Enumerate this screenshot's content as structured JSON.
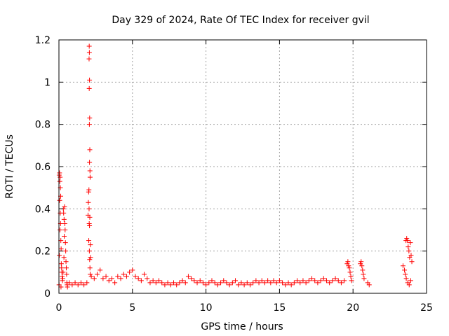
{
  "chart_data": {
    "type": "scatter",
    "title": "Day 329 of 2024, Rate Of TEC Index for receiver gvil",
    "xlabel": "GPS time / hours",
    "ylabel": "ROTI / TECUs",
    "xlim": [
      0,
      25
    ],
    "ylim": [
      0,
      1.2
    ],
    "x_ticks": [
      0,
      5,
      10,
      15,
      20,
      25
    ],
    "x_tick_labels": [
      "0",
      "5",
      "10",
      "15",
      "20",
      "25"
    ],
    "y_ticks": [
      0,
      0.2,
      0.4,
      0.6,
      0.8,
      1.0,
      1.2
    ],
    "y_tick_labels": [
      "0",
      "0.2",
      "0.4",
      "0.6",
      "0.8",
      "1",
      "1.2"
    ],
    "grid": true,
    "grid_style": "dotted",
    "marker": "+",
    "marker_color": "#ff0000",
    "series": [
      {
        "values_note": "",
        "points": [
          [
            0.02,
            0.56
          ],
          [
            0.04,
            0.57
          ],
          [
            0.06,
            0.53
          ],
          [
            0.08,
            0.55
          ],
          [
            0.1,
            0.5
          ],
          [
            0.12,
            0.46
          ],
          [
            0.05,
            0.44
          ],
          [
            0.09,
            0.38
          ],
          [
            0.11,
            0.33
          ],
          [
            0.07,
            0.3
          ],
          [
            0.13,
            0.25
          ],
          [
            0.15,
            0.21
          ],
          [
            0.03,
            0.18
          ],
          [
            0.16,
            0.14
          ],
          [
            0.18,
            0.12
          ],
          [
            0.2,
            0.1
          ],
          [
            0.22,
            0.08
          ],
          [
            0.24,
            0.06
          ],
          [
            0.01,
            0.04
          ],
          [
            0.14,
            0.03
          ],
          [
            0.3,
            0.4
          ],
          [
            0.32,
            0.38
          ],
          [
            0.35,
            0.35
          ],
          [
            0.38,
            0.41
          ],
          [
            0.4,
            0.33
          ],
          [
            0.42,
            0.3
          ],
          [
            0.36,
            0.27
          ],
          [
            0.44,
            0.24
          ],
          [
            0.46,
            0.2
          ],
          [
            0.34,
            0.17
          ],
          [
            0.48,
            0.15
          ],
          [
            0.5,
            0.12
          ],
          [
            0.28,
            0.1
          ],
          [
            0.52,
            0.09
          ],
          [
            0.26,
            0.07
          ],
          [
            0.54,
            0.05
          ],
          [
            0.56,
            0.04
          ],
          [
            0.58,
            0.03
          ],
          [
            0.7,
            0.05
          ],
          [
            0.9,
            0.04
          ],
          [
            1.1,
            0.05
          ],
          [
            1.3,
            0.04
          ],
          [
            1.5,
            0.05
          ],
          [
            1.7,
            0.04
          ],
          [
            1.9,
            0.05
          ],
          [
            1.98,
            0.37
          ],
          [
            2.0,
            0.43
          ],
          [
            2.02,
            0.48
          ],
          [
            2.04,
            0.49
          ],
          [
            2.05,
            0.4
          ],
          [
            2.06,
            0.33
          ],
          [
            2.08,
            0.32
          ],
          [
            2.1,
            0.36
          ],
          [
            2.03,
            0.25
          ],
          [
            2.07,
            0.2
          ],
          [
            2.09,
            0.16
          ],
          [
            2.11,
            0.12
          ],
          [
            2.13,
            0.09
          ],
          [
            2.06,
            1.17
          ],
          [
            2.07,
            1.14
          ],
          [
            2.05,
            1.11
          ],
          [
            2.08,
            1.01
          ],
          [
            2.06,
            0.97
          ],
          [
            2.09,
            0.83
          ],
          [
            2.07,
            0.8
          ],
          [
            2.1,
            0.68
          ],
          [
            2.08,
            0.62
          ],
          [
            2.11,
            0.58
          ],
          [
            2.12,
            0.55
          ],
          [
            2.14,
            0.23
          ],
          [
            2.15,
            0.17
          ],
          [
            2.2,
            0.08
          ],
          [
            2.4,
            0.07
          ],
          [
            2.6,
            0.09
          ],
          [
            2.8,
            0.11
          ],
          [
            3.0,
            0.07
          ],
          [
            3.2,
            0.08
          ],
          [
            3.4,
            0.06
          ],
          [
            3.6,
            0.07
          ],
          [
            3.8,
            0.05
          ],
          [
            4.0,
            0.08
          ],
          [
            4.2,
            0.07
          ],
          [
            4.4,
            0.09
          ],
          [
            4.6,
            0.08
          ],
          [
            4.8,
            0.1
          ],
          [
            5.0,
            0.11
          ],
          [
            5.2,
            0.08
          ],
          [
            5.4,
            0.07
          ],
          [
            5.6,
            0.06
          ],
          [
            5.8,
            0.09
          ],
          [
            6.0,
            0.07
          ],
          [
            6.2,
            0.05
          ],
          [
            6.4,
            0.06
          ],
          [
            6.6,
            0.05
          ],
          [
            6.8,
            0.06
          ],
          [
            7.0,
            0.05
          ],
          [
            7.2,
            0.04
          ],
          [
            7.4,
            0.05
          ],
          [
            7.6,
            0.04
          ],
          [
            7.8,
            0.05
          ],
          [
            8.0,
            0.04
          ],
          [
            8.2,
            0.05
          ],
          [
            8.4,
            0.06
          ],
          [
            8.6,
            0.05
          ],
          [
            8.8,
            0.08
          ],
          [
            9.0,
            0.07
          ],
          [
            9.2,
            0.06
          ],
          [
            9.4,
            0.05
          ],
          [
            9.6,
            0.06
          ],
          [
            9.8,
            0.05
          ],
          [
            10.0,
            0.04
          ],
          [
            10.2,
            0.05
          ],
          [
            10.4,
            0.06
          ],
          [
            10.6,
            0.05
          ],
          [
            10.8,
            0.04
          ],
          [
            11.0,
            0.05
          ],
          [
            11.2,
            0.06
          ],
          [
            11.4,
            0.05
          ],
          [
            11.6,
            0.04
          ],
          [
            11.8,
            0.05
          ],
          [
            12.0,
            0.06
          ],
          [
            12.2,
            0.04
          ],
          [
            12.4,
            0.05
          ],
          [
            12.6,
            0.04
          ],
          [
            12.8,
            0.05
          ],
          [
            13.0,
            0.04
          ],
          [
            13.2,
            0.05
          ],
          [
            13.4,
            0.06
          ],
          [
            13.6,
            0.05
          ],
          [
            13.8,
            0.06
          ],
          [
            14.0,
            0.05
          ],
          [
            14.2,
            0.06
          ],
          [
            14.4,
            0.05
          ],
          [
            14.6,
            0.06
          ],
          [
            14.8,
            0.05
          ],
          [
            15.0,
            0.06
          ],
          [
            15.2,
            0.05
          ],
          [
            15.4,
            0.04
          ],
          [
            15.6,
            0.05
          ],
          [
            15.8,
            0.04
          ],
          [
            16.0,
            0.05
          ],
          [
            16.2,
            0.06
          ],
          [
            16.4,
            0.05
          ],
          [
            16.6,
            0.06
          ],
          [
            16.8,
            0.05
          ],
          [
            17.0,
            0.06
          ],
          [
            17.2,
            0.07
          ],
          [
            17.4,
            0.06
          ],
          [
            17.6,
            0.05
          ],
          [
            17.8,
            0.06
          ],
          [
            18.0,
            0.07
          ],
          [
            18.2,
            0.06
          ],
          [
            18.4,
            0.05
          ],
          [
            18.6,
            0.06
          ],
          [
            18.8,
            0.07
          ],
          [
            19.0,
            0.06
          ],
          [
            19.2,
            0.05
          ],
          [
            19.4,
            0.06
          ],
          [
            19.6,
            0.14
          ],
          [
            19.65,
            0.15
          ],
          [
            19.7,
            0.13
          ],
          [
            19.75,
            0.12
          ],
          [
            19.8,
            0.1
          ],
          [
            19.85,
            0.08
          ],
          [
            19.9,
            0.06
          ],
          [
            20.5,
            0.14
          ],
          [
            20.55,
            0.15
          ],
          [
            20.6,
            0.13
          ],
          [
            20.65,
            0.11
          ],
          [
            20.7,
            0.09
          ],
          [
            20.75,
            0.07
          ],
          [
            21.0,
            0.05
          ],
          [
            21.1,
            0.04
          ],
          [
            23.4,
            0.13
          ],
          [
            23.5,
            0.11
          ],
          [
            23.55,
            0.09
          ],
          [
            23.6,
            0.25
          ],
          [
            23.65,
            0.26
          ],
          [
            23.7,
            0.25
          ],
          [
            23.75,
            0.22
          ],
          [
            23.8,
            0.2
          ],
          [
            23.85,
            0.17
          ],
          [
            23.9,
            0.24
          ],
          [
            23.95,
            0.18
          ],
          [
            24.0,
            0.15
          ],
          [
            23.62,
            0.07
          ],
          [
            23.72,
            0.05
          ],
          [
            23.82,
            0.04
          ],
          [
            23.92,
            0.06
          ]
        ]
      }
    ]
  }
}
